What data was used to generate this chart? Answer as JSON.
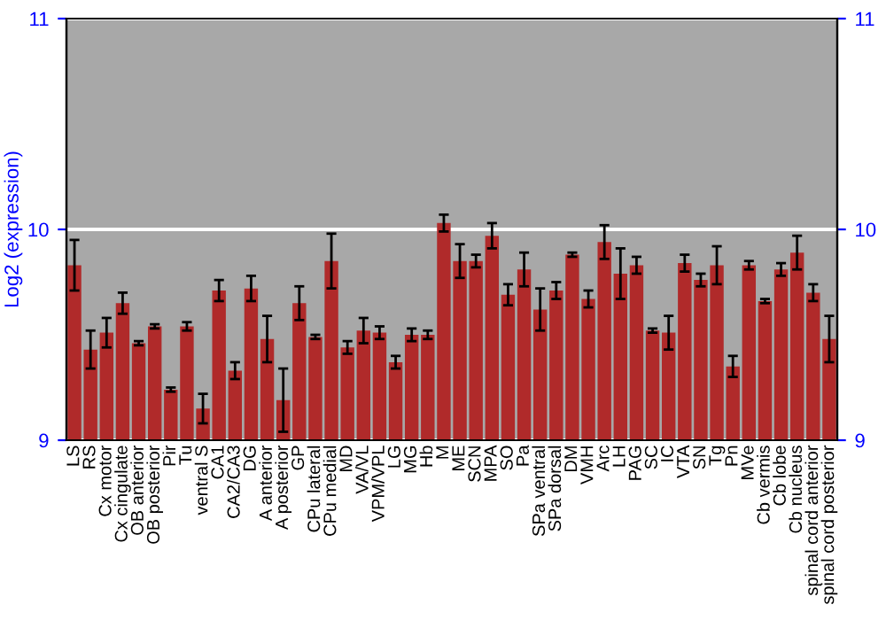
{
  "chart_data": {
    "type": "bar",
    "ylabel": "Log2 (expression)",
    "categories": [
      "LS",
      "RS",
      "Cx motor",
      "Cx cingulate",
      "OB anterior",
      "OB posterior",
      "Pir",
      "Tu",
      "ventral S",
      "CA1",
      "CA2/CA3",
      "DG",
      "A anterior",
      "A posterior",
      "GP",
      "CPu lateral",
      "CPu medial",
      "MD",
      "VA/VL",
      "VPM/VPL",
      "LG",
      "MG",
      "Hb",
      "M",
      "ME",
      "SCN",
      "MPA",
      "SO",
      "Pa",
      "SPa ventral",
      "SPa dorsal",
      "DM",
      "VMH",
      "Arc",
      "LH",
      "PAG",
      "SC",
      "IC",
      "VTA",
      "SN",
      "Tg",
      "Pn",
      "MVe",
      "Cb vermis",
      "Cb lobe",
      "Cb nucleus",
      "spinal cord anterior",
      "spinal cord posterior"
    ],
    "series": [
      {
        "color": "#b02a2a",
        "values": [
          9.83,
          9.43,
          9.51,
          9.65,
          9.46,
          9.54,
          9.24,
          9.54,
          9.15,
          9.71,
          9.33,
          9.72,
          9.48,
          9.19,
          9.65,
          9.49,
          9.85,
          9.44,
          9.52,
          9.51,
          9.37,
          9.5,
          9.5,
          10.03,
          9.85,
          9.85,
          9.97,
          9.69,
          9.81,
          9.62,
          9.71,
          9.88,
          9.67,
          9.94,
          9.79,
          9.83,
          9.52,
          9.51,
          9.84,
          9.76,
          9.83,
          9.35,
          9.83,
          9.66,
          9.81,
          9.89,
          9.7,
          9.48
        ],
        "errors": [
          0.12,
          0.09,
          0.07,
          0.05,
          0.01,
          0.01,
          0.01,
          0.02,
          0.07,
          0.05,
          0.04,
          0.06,
          0.11,
          0.15,
          0.08,
          0.01,
          0.13,
          0.03,
          0.06,
          0.03,
          0.03,
          0.03,
          0.02,
          0.04,
          0.08,
          0.03,
          0.06,
          0.05,
          0.08,
          0.1,
          0.04,
          0.01,
          0.04,
          0.08,
          0.12,
          0.04,
          0.01,
          0.08,
          0.04,
          0.03,
          0.09,
          0.05,
          0.02,
          0.01,
          0.03,
          0.08,
          0.04,
          0.11
        ]
      }
    ],
    "ylim": [
      9,
      11
    ],
    "yticks": [
      9,
      10,
      11
    ],
    "y2lim": [
      9,
      11
    ],
    "y2ticks": [
      9,
      10,
      11
    ],
    "grid": "y",
    "legend": false
  }
}
